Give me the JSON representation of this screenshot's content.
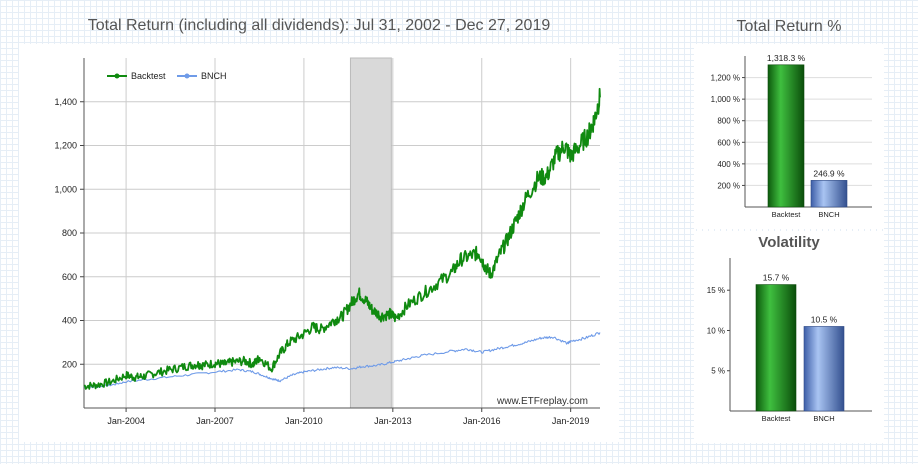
{
  "main_chart": {
    "title": "Total Return (including all dividends): Jul 31, 2002 - Dec 27, 2019",
    "watermark": "www.ETFreplay.com",
    "legend": [
      {
        "name": "Backtest",
        "color": "#108a10"
      },
      {
        "name": "BNCH",
        "color": "#6f9be8"
      }
    ]
  },
  "side": {
    "total_return_title": "Total Return %",
    "volatility_title": "Volatility"
  },
  "chart_data": [
    {
      "type": "line",
      "title": "Total Return (including all dividends): Jul 31, 2002 - Dec 27, 2019",
      "xlabel": "",
      "ylabel": "",
      "xlim": [
        2002.58,
        2019.99
      ],
      "ylim": [
        0,
        1600
      ],
      "yticks": [
        200,
        400,
        600,
        800,
        1000,
        1200,
        1400
      ],
      "ytick_labels": [
        "200",
        "400",
        "600",
        "800",
        "1,000",
        "1,200",
        "1,400"
      ],
      "xticks": [
        2004,
        2007,
        2010,
        2013,
        2016,
        2019
      ],
      "xtick_labels": [
        "Jan-2004",
        "Jan-2007",
        "Jan-2010",
        "Jan-2013",
        "Jan-2016",
        "Jan-2019"
      ],
      "grid": true,
      "legend": "top-left",
      "shaded_region": [
        2011.57,
        2012.95
      ],
      "series": [
        {
          "name": "Backtest",
          "color": "#108a10",
          "x": [
            2002.58,
            2003.0,
            2003.5,
            2004.0,
            2004.3,
            2004.6,
            2005.0,
            2005.5,
            2006.0,
            2006.4,
            2006.6,
            2007.0,
            2007.3,
            2007.6,
            2008.0,
            2008.3,
            2008.5,
            2008.9,
            2009.2,
            2009.5,
            2009.9,
            2010.3,
            2010.6,
            2011.0,
            2011.3,
            2011.6,
            2011.85,
            2012.1,
            2012.3,
            2012.6,
            2012.9,
            2013.1,
            2013.5,
            2014.0,
            2014.5,
            2015.0,
            2015.3,
            2015.7,
            2015.9,
            2016.1,
            2016.3,
            2016.6,
            2016.9,
            2017.2,
            2017.5,
            2017.9,
            2018.2,
            2018.5,
            2018.8,
            2019.0,
            2019.3,
            2019.6,
            2019.8,
            2019.99
          ],
          "y": [
            100,
            105,
            120,
            150,
            140,
            145,
            160,
            175,
            190,
            200,
            195,
            205,
            200,
            210,
            215,
            200,
            230,
            180,
            250,
            300,
            330,
            370,
            360,
            400,
            420,
            480,
            525,
            490,
            450,
            420,
            430,
            410,
            470,
            520,
            570,
            620,
            680,
            700,
            710,
            650,
            610,
            700,
            780,
            870,
            960,
            1050,
            1060,
            1150,
            1200,
            1150,
            1200,
            1250,
            1320,
            1420
          ]
        },
        {
          "name": "BNCH",
          "color": "#6f9be8",
          "x": [
            2002.58,
            2003.0,
            2003.5,
            2004.0,
            2005.0,
            2006.0,
            2007.0,
            2007.8,
            2008.3,
            2008.7,
            2009.0,
            2009.2,
            2009.6,
            2010.0,
            2010.5,
            2011.0,
            2011.6,
            2012.0,
            2012.5,
            2013.0,
            2013.5,
            2014.0,
            2015.0,
            2015.5,
            2016.0,
            2016.5,
            2017.0,
            2017.5,
            2018.0,
            2018.4,
            2018.9,
            2019.0,
            2019.5,
            2019.99
          ],
          "y": [
            95,
            95,
            105,
            120,
            135,
            150,
            165,
            175,
            165,
            145,
            130,
            125,
            150,
            165,
            175,
            185,
            180,
            190,
            195,
            210,
            225,
            240,
            260,
            270,
            255,
            270,
            285,
            300,
            320,
            325,
            295,
            305,
            320,
            345
          ]
        }
      ]
    },
    {
      "type": "bar",
      "title": "Total Return %",
      "categories": [
        "Backtest",
        "BNCH"
      ],
      "values": [
        1318.3,
        246.9
      ],
      "data_labels": [
        "1,318.3 %",
        "246.9 %"
      ],
      "colors": [
        "#1d8a1d",
        "#7b9fdc"
      ],
      "ylim": [
        0,
        1400
      ],
      "yticks": [
        200,
        400,
        600,
        800,
        1000,
        1200
      ],
      "ytick_labels": [
        "200 %",
        "400 %",
        "600 %",
        "800 %",
        "1,000 %",
        "1,200 %"
      ],
      "grid": true
    },
    {
      "type": "bar",
      "title": "Volatility",
      "categories": [
        "Backtest",
        "BNCH"
      ],
      "values": [
        15.7,
        10.5
      ],
      "data_labels": [
        "15.7 %",
        "10.5 %"
      ],
      "colors": [
        "#1d8a1d",
        "#7b9fdc"
      ],
      "ylim": [
        0,
        19
      ],
      "yticks": [
        5,
        10,
        15
      ],
      "ytick_labels": [
        "5 %",
        "10 %",
        "15 %"
      ],
      "grid": false
    }
  ]
}
